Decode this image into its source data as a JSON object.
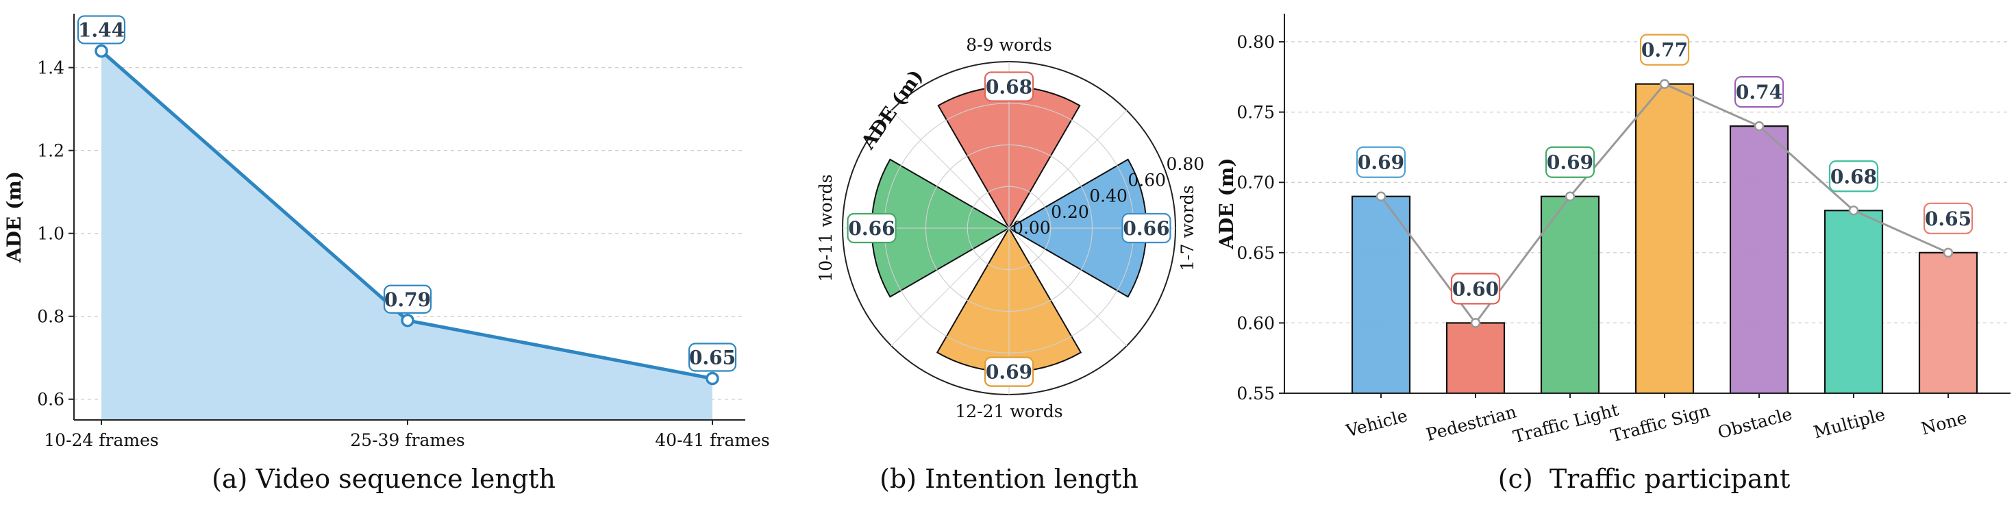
{
  "colors": {
    "line_blue": "#2e86c1",
    "fill_blue": "#bcdcf2",
    "bar_blue": "#6ab0e3",
    "bar_red": "#ec7b6c",
    "bar_green": "#5fc07f",
    "bar_orange": "#f5b14e",
    "bar_purple": "#b484c7",
    "bar_teal": "#52cfb0",
    "bar_salmon": "#f29a8d",
    "connector_gray": "#999999"
  },
  "chart_data": [
    {
      "type": "area",
      "caption": "(a) Video sequence length",
      "ylabel": "ADE (m)",
      "xlabel": "",
      "categories": [
        "10-24 frames",
        "25-39 frames",
        "40-41 frames"
      ],
      "values": [
        1.44,
        0.79,
        0.65
      ],
      "labels": [
        "1.44",
        "0.79",
        "0.65"
      ],
      "ylim": [
        0.55,
        1.53
      ],
      "yticks": [
        "0.6",
        "0.8",
        "1.0",
        "1.2",
        "1.4"
      ],
      "ytick_values": [
        0.6,
        0.8,
        1.0,
        1.2,
        1.4
      ],
      "grid": true
    },
    {
      "type": "bar",
      "subtype": "polar",
      "caption": "(b) Intention length",
      "radial_label": "ADE (m)",
      "categories": [
        "1-7 words",
        "8-9 words",
        "10-11 words",
        "12-21 words"
      ],
      "values": [
        0.66,
        0.68,
        0.66,
        0.69
      ],
      "labels": [
        "0.66",
        "0.68",
        "0.66",
        "0.69"
      ],
      "rlim": [
        0,
        0.8
      ],
      "rticks": [
        "0.00",
        "0.20",
        "0.40",
        "0.60",
        "0.80"
      ],
      "rtick_values": [
        0,
        0.2,
        0.4,
        0.6,
        0.8
      ],
      "grid": true
    },
    {
      "type": "bar",
      "caption": "(c)  Traffic participant",
      "ylabel": "ADE (m)",
      "xlabel": "",
      "categories": [
        "Vehicle",
        "Pedestrian",
        "Traffic Light",
        "Traffic Sign",
        "Obstacle",
        "Multiple",
        "None"
      ],
      "values": [
        0.69,
        0.6,
        0.69,
        0.77,
        0.74,
        0.68,
        0.65
      ],
      "labels": [
        "0.69",
        "0.60",
        "0.69",
        "0.77",
        "0.74",
        "0.68",
        "0.65"
      ],
      "ylim": [
        0.55,
        0.82
      ],
      "yticks": [
        "0.55",
        "0.60",
        "0.65",
        "0.70",
        "0.75",
        "0.80"
      ],
      "ytick_values": [
        0.55,
        0.6,
        0.65,
        0.7,
        0.75,
        0.8
      ],
      "grid": true
    }
  ]
}
